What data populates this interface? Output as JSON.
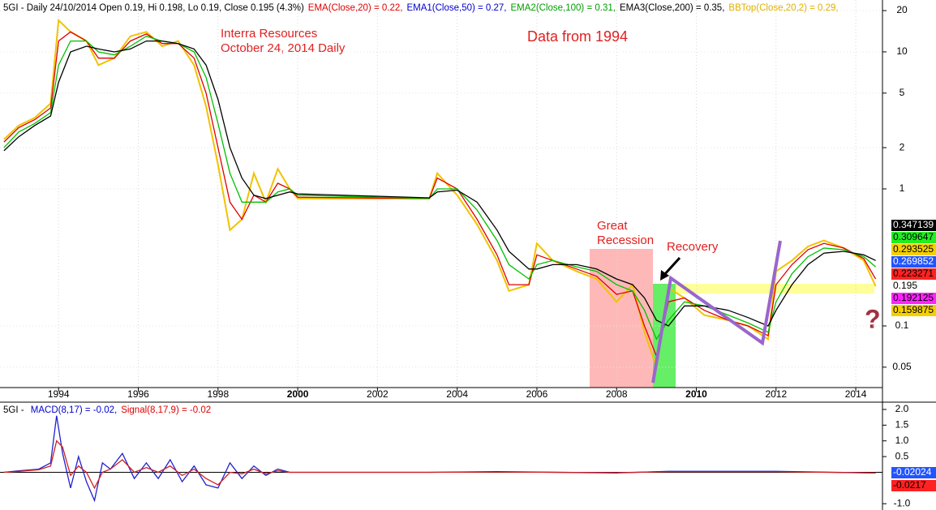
{
  "chart_data": [
    {
      "type": "line",
      "log_y": true,
      "grid": true,
      "header": [
        {
          "text": "5GI - Daily 24/10/2014 Open 0.19, Hi 0.198, Lo 0.19, Close 0.195 (4.3%)",
          "color": "#000000"
        },
        {
          "text": "EMA(Close,20) = 0.22,",
          "color": "#e00000"
        },
        {
          "text": "EMA1(Close,50) = 0.27,",
          "color": "#0000d0"
        },
        {
          "text": "EMA2(Close,100) = 0.31,",
          "color": "#00a000"
        },
        {
          "text": "EMA3(Close,200) = 0.35,",
          "color": "#000000"
        },
        {
          "text": "BBTop(Close,20,2) = 0.29,",
          "color": "#e0b000"
        }
      ],
      "annotations": [
        "Interra Resources",
        "October 24, 2014 Daily",
        "Data from 1994",
        "Great",
        "Recession",
        "Recovery",
        "?"
      ],
      "x": [
        1992.63,
        1993.0,
        1993.4,
        1993.8,
        1994.0,
        1994.3,
        1994.7,
        1995.0,
        1995.4,
        1995.8,
        1996.2,
        1996.6,
        1997.0,
        1997.4,
        1997.7,
        1998.0,
        1998.3,
        1998.6,
        1998.9,
        1999.2,
        1999.5,
        1999.8,
        2000.0,
        2003.3,
        2003.5,
        2004.0,
        2004.5,
        2005.0,
        2005.3,
        2005.8,
        2006.0,
        2006.4,
        2007.0,
        2007.5,
        2008.0,
        2008.4,
        2008.7,
        2009.0,
        2009.3,
        2009.7,
        2010.2,
        2010.8,
        2011.3,
        2011.8,
        2012.0,
        2012.4,
        2012.8,
        2013.2,
        2013.7,
        2014.2,
        2014.5
      ],
      "series": [
        {
          "color": "#f2c200",
          "values": [
            2.3,
            2.9,
            3.3,
            4.2,
            17,
            14,
            12,
            8,
            9,
            13,
            14,
            11,
            12,
            8,
            4,
            1.5,
            0.5,
            0.6,
            1.3,
            0.8,
            1.4,
            1.0,
            0.85,
            0.85,
            1.3,
            0.9,
            0.55,
            0.3,
            0.18,
            0.2,
            0.4,
            0.3,
            0.25,
            0.22,
            0.15,
            0.2,
            0.09,
            0.05,
            0.19,
            0.16,
            0.12,
            0.11,
            0.1,
            0.08,
            0.25,
            0.3,
            0.38,
            0.42,
            0.37,
            0.3,
            0.195
          ]
        },
        {
          "color": "#e00000",
          "values": [
            2.2,
            2.8,
            3.2,
            3.9,
            12,
            14,
            12,
            9,
            9,
            12,
            13.5,
            11.5,
            11.5,
            9,
            5,
            2,
            0.8,
            0.6,
            0.9,
            0.8,
            1.1,
            1.0,
            0.87,
            0.85,
            1.2,
            1.0,
            0.6,
            0.33,
            0.2,
            0.2,
            0.33,
            0.3,
            0.26,
            0.23,
            0.17,
            0.18,
            0.1,
            0.06,
            0.15,
            0.16,
            0.13,
            0.11,
            0.1,
            0.085,
            0.2,
            0.28,
            0.36,
            0.4,
            0.37,
            0.31,
            0.22
          ]
        },
        {
          "color": "#00c000",
          "values": [
            2.0,
            2.6,
            3.0,
            3.6,
            8,
            12,
            12,
            10,
            9.5,
            11,
            13,
            12,
            11.5,
            10,
            6.5,
            3,
            1.3,
            0.8,
            0.8,
            0.8,
            0.95,
            1.0,
            0.9,
            0.85,
            1.0,
            1.0,
            0.7,
            0.42,
            0.28,
            0.22,
            0.28,
            0.3,
            0.27,
            0.25,
            0.2,
            0.18,
            0.13,
            0.08,
            0.11,
            0.15,
            0.14,
            0.12,
            0.105,
            0.09,
            0.15,
            0.24,
            0.32,
            0.37,
            0.36,
            0.32,
            0.27
          ]
        },
        {
          "color": "#000000",
          "values": [
            1.9,
            2.4,
            2.9,
            3.4,
            6,
            10,
            11,
            10.5,
            10,
            10.5,
            12,
            12,
            11.5,
            10.5,
            8,
            4.5,
            2,
            1.2,
            0.9,
            0.85,
            0.9,
            0.95,
            0.92,
            0.86,
            0.95,
            0.98,
            0.8,
            0.5,
            0.35,
            0.26,
            0.26,
            0.28,
            0.28,
            0.26,
            0.22,
            0.2,
            0.16,
            0.11,
            0.1,
            0.14,
            0.14,
            0.13,
            0.115,
            0.1,
            0.13,
            0.2,
            0.28,
            0.34,
            0.35,
            0.33,
            0.3
          ]
        }
      ],
      "xlim": [
        1992.53,
        2014.67
      ],
      "xticks": [
        1994,
        1996,
        1998,
        2000,
        2002,
        2004,
        2006,
        2008,
        2010,
        2012,
        2014
      ],
      "ylim": [
        0.0355,
        23.9
      ],
      "yticks": [
        20,
        10,
        5,
        2,
        1,
        0.1,
        0.05
      ],
      "last_values": [
        {
          "value": 0.347139,
          "color": "#000000",
          "text_color": "#ffffff"
        },
        {
          "value": 0.309647,
          "color": "#22ee22",
          "text_color": "#000000"
        },
        {
          "value": 0.293525,
          "color": "#f5d000",
          "text_color": "#000000"
        },
        {
          "value": 0.269852,
          "color": "#2255ff",
          "text_color": "#ffffff"
        },
        {
          "value": 0.223271,
          "color": "#ff2222",
          "text_color": "#000000"
        },
        {
          "value": 0.195,
          "color": "#ffffff",
          "text_color": "#000000"
        },
        {
          "value": 0.192125,
          "color": "#ff22ff",
          "text_color": "#000000"
        },
        {
          "value": 0.159875,
          "color": "#f5d000",
          "text_color": "#000000"
        }
      ]
    },
    {
      "type": "line",
      "header": [
        {
          "text": "5GI - ",
          "color": "#000000"
        },
        {
          "text": "MACD(8,17) = -0.02,",
          "color": "#0000d0"
        },
        {
          "text": "Signal(8,17,9) = -0.02",
          "color": "#e00000"
        }
      ],
      "x": [
        1992.63,
        1993.0,
        1993.5,
        1993.8,
        1993.95,
        1994.1,
        1994.3,
        1994.5,
        1994.7,
        1994.9,
        1995.1,
        1995.3,
        1995.6,
        1995.9,
        1996.2,
        1996.5,
        1996.8,
        1997.1,
        1997.4,
        1997.7,
        1998.0,
        1998.3,
        1998.6,
        1998.9,
        1999.2,
        1999.5,
        1999.8,
        2000.0,
        2003.3,
        2005.0,
        2008.0,
        2009.3,
        2012.0,
        2014.5
      ],
      "series": [
        {
          "color": "#2020d0",
          "values": [
            0,
            0.05,
            0.1,
            0.3,
            1.8,
            0.6,
            -0.5,
            0.5,
            -0.3,
            -0.9,
            0.3,
            0.1,
            0.6,
            -0.2,
            0.3,
            -0.2,
            0.4,
            -0.3,
            0.2,
            -0.4,
            -0.5,
            0.3,
            -0.2,
            0.2,
            -0.1,
            0.1,
            0.0,
            0.0,
            0.0,
            0.02,
            -0.02,
            0.03,
            0.03,
            -0.02
          ]
        },
        {
          "color": "#d02020",
          "values": [
            0,
            0.03,
            0.08,
            0.2,
            1.0,
            0.8,
            -0.1,
            0.2,
            0.0,
            -0.5,
            0.0,
            0.1,
            0.4,
            0.0,
            0.15,
            0.0,
            0.2,
            -0.1,
            0.1,
            -0.2,
            -0.4,
            0.0,
            -0.05,
            0.1,
            -0.05,
            0.05,
            0.0,
            0.0,
            0.0,
            0.01,
            -0.01,
            0.02,
            0.02,
            -0.02
          ]
        }
      ],
      "xlim": [
        1992.53,
        2014.67
      ],
      "ylim": [
        -1.2,
        2.18
      ],
      "yticks": [
        {
          "value": 2,
          "label": "2.0"
        },
        {
          "value": 1.5,
          "label": "1.5"
        },
        {
          "value": 1,
          "label": "1.0"
        },
        0.5,
        {
          "value": -1,
          "label": "-1.0"
        }
      ],
      "last_values": [
        {
          "value": -0.02024,
          "color": "#2255ff",
          "text_color": "#ffffff"
        },
        {
          "value": -0.0217,
          "color": "#ff2222",
          "text_color": "#000000"
        }
      ]
    }
  ]
}
